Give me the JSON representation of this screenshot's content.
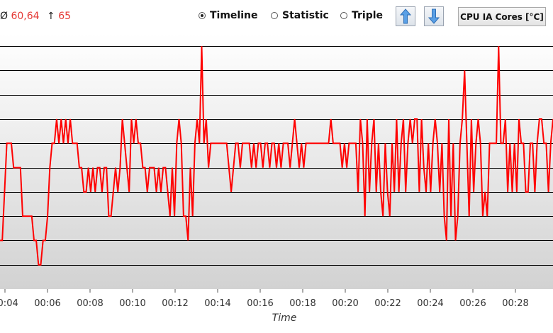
{
  "header": {
    "avg_symbol": "Ø",
    "avg_value": "60,64",
    "max_symbol": "↑",
    "max_value": "65",
    "modes": [
      {
        "label": "Timeline",
        "selected": true
      },
      {
        "label": "Statistic",
        "selected": false
      },
      {
        "label": "Triple",
        "selected": false
      }
    ],
    "up_icon": "arrow-up-icon",
    "down_icon": "arrow-down-icon",
    "sensor_label": "CPU IA Cores [°C]"
  },
  "colors": {
    "line": "#ff0000",
    "grid": "#000000",
    "plot_top": "#ffffff",
    "plot_bottom": "#d2d2d2"
  },
  "chart_data": {
    "type": "line",
    "xlabel": "Time",
    "ylabel": "",
    "title": "",
    "x_ticks": [
      "00:04",
      "00:06",
      "00:08",
      "00:10",
      "00:12",
      "00:14",
      "00:16",
      "00:18",
      "00:20",
      "00:22",
      "00:24",
      "00:26",
      "00:28"
    ],
    "ylim": [
      55,
      65.5
    ],
    "y_gridlines": [
      56,
      57,
      58,
      59,
      60,
      61,
      62,
      63,
      64,
      65
    ],
    "grid": true,
    "legend": "none",
    "series": [
      {
        "values": [
          57,
          57,
          59,
          61,
          61,
          61,
          60,
          60,
          60,
          60,
          58,
          58,
          58,
          58,
          58,
          57,
          57,
          56,
          56,
          57,
          57,
          58,
          60,
          61,
          61,
          62,
          61,
          62,
          61,
          62,
          61,
          62,
          61,
          61,
          61,
          60,
          60,
          59,
          59,
          60,
          59,
          60,
          59,
          60,
          60,
          59,
          60,
          60,
          58,
          58,
          59,
          60,
          59,
          60,
          62,
          61,
          60,
          59,
          62,
          61,
          62,
          61,
          61,
          60,
          60,
          59,
          60,
          60,
          60,
          59,
          60,
          59,
          60,
          60,
          59,
          58,
          60,
          58,
          61,
          62,
          61,
          58,
          58,
          57,
          60,
          58,
          61,
          62,
          61,
          65,
          61,
          62,
          60,
          61,
          61,
          61,
          61,
          61,
          61,
          61,
          61,
          60,
          59,
          60,
          61,
          61,
          60,
          61,
          61,
          61,
          61,
          60,
          61,
          60,
          61,
          61,
          60,
          61,
          61,
          60,
          61,
          61,
          60,
          61,
          60,
          61,
          61,
          61,
          60,
          61,
          62,
          61,
          60,
          61,
          60,
          61,
          61,
          61,
          61,
          61,
          61,
          61,
          61,
          61,
          61,
          61,
          62,
          61,
          61,
          61,
          61,
          60,
          61,
          60,
          61,
          61,
          61,
          61,
          59,
          62,
          61,
          58,
          62,
          59,
          61,
          62,
          59,
          61,
          59,
          58,
          61,
          59,
          58,
          61,
          59,
          62,
          59,
          61,
          62,
          59,
          61,
          62,
          61,
          62,
          62,
          59,
          62,
          60,
          59,
          61,
          59,
          61,
          62,
          61,
          59,
          61,
          58,
          57,
          62,
          58,
          61,
          57,
          58,
          61,
          62,
          64,
          61,
          58,
          62,
          59,
          61,
          62,
          61,
          58,
          59,
          58,
          61,
          61,
          61,
          61,
          65,
          61,
          61,
          62,
          59,
          61,
          59,
          61,
          59,
          62,
          61,
          61,
          59,
          59,
          61,
          61,
          59,
          61,
          62,
          62,
          61,
          61,
          59,
          61,
          62
        ],
        "color": "#ff0000"
      }
    ]
  }
}
